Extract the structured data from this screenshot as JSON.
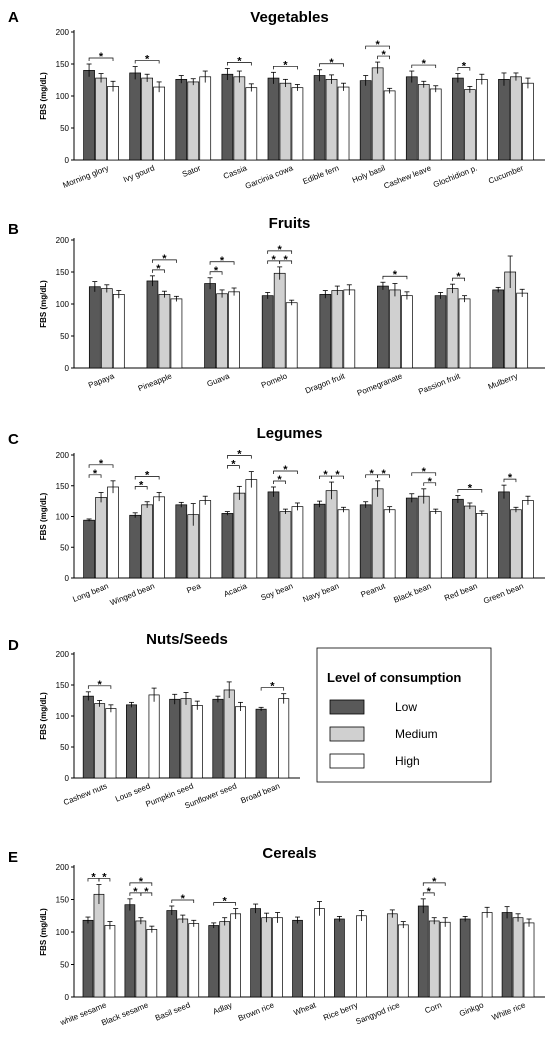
{
  "legend": {
    "title": "Level of consumption",
    "items": [
      {
        "label": "Low",
        "color": "#595959"
      },
      {
        "label": "Medium",
        "color": "#d0d0d0"
      },
      {
        "label": "High",
        "color": "#ffffff"
      }
    ]
  },
  "chart_data": [
    {
      "type": "bar",
      "letter": "A",
      "title": "Vegetables",
      "ylabel": "FBS (mg/dL)",
      "ylim": [
        0,
        200
      ],
      "yticks": [
        0,
        50,
        100,
        150,
        200
      ],
      "categories": [
        "Morning glory",
        "Ivy gourd",
        "Sator",
        "Cassia",
        "Garcinia cowa",
        "Edible fern",
        "Holy basil",
        "Cashew leave",
        "Glochidion p.",
        "Cucumber"
      ],
      "series": [
        {
          "name": "Low",
          "values": [
            140,
            136,
            126,
            134,
            128,
            132,
            124,
            130,
            128,
            126
          ],
          "errors": [
            10,
            10,
            6,
            9,
            9,
            9,
            8,
            9,
            7,
            10
          ]
        },
        {
          "name": "Medium",
          "values": [
            128,
            128,
            122,
            130,
            120,
            126,
            144,
            118,
            110,
            130
          ],
          "errors": [
            7,
            6,
            5,
            9,
            6,
            7,
            9,
            5,
            5,
            6
          ]
        },
        {
          "name": "High",
          "values": [
            115,
            114,
            130,
            113,
            113,
            114,
            108,
            111,
            126,
            120
          ],
          "errors": [
            8,
            8,
            9,
            6,
            5,
            6,
            4,
            5,
            8,
            8
          ]
        }
      ],
      "significance": [
        {
          "cat": 0,
          "from": 0,
          "to": 2,
          "level": 0
        },
        {
          "cat": 1,
          "from": 0,
          "to": 2,
          "level": 0
        },
        {
          "cat": 3,
          "from": 0,
          "to": 2,
          "level": 0
        },
        {
          "cat": 4,
          "from": 0,
          "to": 2,
          "level": 0
        },
        {
          "cat": 5,
          "from": 0,
          "to": 2,
          "level": 0
        },
        {
          "cat": 6,
          "from": 0,
          "to": 2,
          "level": 1
        },
        {
          "cat": 6,
          "from": 1,
          "to": 2,
          "level": 0
        },
        {
          "cat": 7,
          "from": 0,
          "to": 2,
          "level": 0
        },
        {
          "cat": 8,
          "from": 0,
          "to": 1,
          "level": 0
        }
      ]
    },
    {
      "type": "bar",
      "letter": "B",
      "title": "Fruits",
      "ylabel": "FBS (mg/dL)",
      "ylim": [
        0,
        200
      ],
      "yticks": [
        0,
        50,
        100,
        150,
        200
      ],
      "categories": [
        "Papaya",
        "Pineapple",
        "Guava",
        "Pomelo",
        "Dragon fruit",
        "Pomegranate",
        "Passion fruit",
        "Mulberry"
      ],
      "series": [
        {
          "name": "Low",
          "values": [
            127,
            136,
            132,
            113,
            115,
            128,
            113,
            122
          ],
          "errors": [
            8,
            8,
            9,
            5,
            6,
            6,
            5,
            4
          ]
        },
        {
          "name": "Medium",
          "values": [
            124,
            115,
            116,
            148,
            121,
            122,
            124,
            150
          ],
          "errors": [
            6,
            5,
            6,
            10,
            7,
            10,
            7,
            25
          ]
        },
        {
          "name": "High",
          "values": [
            115,
            108,
            119,
            102,
            122,
            113,
            108,
            117
          ],
          "errors": [
            6,
            4,
            6,
            4,
            8,
            6,
            5,
            6
          ]
        }
      ],
      "significance": [
        {
          "cat": 1,
          "from": 0,
          "to": 2,
          "level": 1
        },
        {
          "cat": 1,
          "from": 0,
          "to": 1,
          "level": 0
        },
        {
          "cat": 2,
          "from": 0,
          "to": 2,
          "level": 1
        },
        {
          "cat": 2,
          "from": 0,
          "to": 1,
          "level": 0
        },
        {
          "cat": 3,
          "from": 0,
          "to": 2,
          "level": 1
        },
        {
          "cat": 3,
          "from": 0,
          "to": 1,
          "level": 0
        },
        {
          "cat": 3,
          "from": 1,
          "to": 2,
          "level": 0
        },
        {
          "cat": 5,
          "from": 0,
          "to": 2,
          "level": 0
        },
        {
          "cat": 6,
          "from": 1,
          "to": 2,
          "level": 0
        }
      ]
    },
    {
      "type": "bar",
      "letter": "C",
      "title": "Legumes",
      "ylabel": "FBS (mg/dL)",
      "ylim": [
        0,
        200
      ],
      "yticks": [
        0,
        50,
        100,
        150,
        200
      ],
      "categories": [
        "Long bean",
        "Winged bean",
        "Pea",
        "Acacia",
        "Soy bean",
        "Navy bean",
        "Peanut",
        "Black bean",
        "Red bean",
        "Green bean"
      ],
      "series": [
        {
          "name": "Low",
          "values": [
            94,
            102,
            119,
            105,
            140,
            120,
            119,
            130,
            128,
            140
          ],
          "errors": [
            2,
            4,
            4,
            3,
            8,
            5,
            5,
            7,
            6,
            11
          ]
        },
        {
          "name": "Medium",
          "values": [
            131,
            119,
            103,
            138,
            108,
            142,
            145,
            133,
            117,
            111
          ],
          "errors": [
            8,
            5,
            18,
            11,
            4,
            14,
            13,
            12,
            5,
            4
          ]
        },
        {
          "name": "High",
          "values": [
            148,
            132,
            126,
            160,
            116,
            111,
            111,
            108,
            105,
            126
          ],
          "errors": [
            10,
            7,
            7,
            13,
            6,
            4,
            5,
            4,
            4,
            7
          ]
        }
      ],
      "significance": [
        {
          "cat": 0,
          "from": 0,
          "to": 2,
          "level": 1
        },
        {
          "cat": 0,
          "from": 0,
          "to": 1,
          "level": 0
        },
        {
          "cat": 1,
          "from": 0,
          "to": 2,
          "level": 1
        },
        {
          "cat": 1,
          "from": 0,
          "to": 1,
          "level": 0
        },
        {
          "cat": 3,
          "from": 0,
          "to": 2,
          "level": 1
        },
        {
          "cat": 3,
          "from": 0,
          "to": 1,
          "level": 0
        },
        {
          "cat": 4,
          "from": 0,
          "to": 2,
          "level": 1
        },
        {
          "cat": 4,
          "from": 0,
          "to": 1,
          "level": 0
        },
        {
          "cat": 5,
          "from": 0,
          "to": 1,
          "level": 0
        },
        {
          "cat": 5,
          "from": 1,
          "to": 2,
          "level": 0
        },
        {
          "cat": 6,
          "from": 0,
          "to": 1,
          "level": 0
        },
        {
          "cat": 6,
          "from": 1,
          "to": 2,
          "level": 0
        },
        {
          "cat": 7,
          "from": 0,
          "to": 2,
          "level": 1
        },
        {
          "cat": 7,
          "from": 1,
          "to": 2,
          "level": 0
        },
        {
          "cat": 8,
          "from": 0,
          "to": 2,
          "level": 0
        },
        {
          "cat": 9,
          "from": 0,
          "to": 1,
          "level": 0
        }
      ]
    },
    {
      "type": "bar",
      "letter": "D",
      "title": "Nuts/Seeds",
      "ylabel": "FBS (mg/dL)",
      "ylim": [
        0,
        200
      ],
      "yticks": [
        0,
        50,
        100,
        150,
        200
      ],
      "categories": [
        "Cashew nuts",
        "Lous seed",
        "Pumpkin seed",
        "Sunflower seed",
        "Broad bean"
      ],
      "series": [
        {
          "name": "Low",
          "values": [
            132,
            118,
            127,
            127,
            111
          ],
          "errors": [
            7,
            4,
            8,
            5,
            3
          ]
        },
        {
          "name": "Medium",
          "values": [
            120,
            null,
            128,
            142,
            null
          ],
          "errors": [
            5,
            0,
            10,
            13,
            0
          ]
        },
        {
          "name": "High",
          "values": [
            112,
            134,
            117,
            115,
            128
          ],
          "errors": [
            6,
            11,
            7,
            7,
            8
          ]
        }
      ],
      "significance": [
        {
          "cat": 0,
          "from": 0,
          "to": 2,
          "level": 0
        },
        {
          "cat": 4,
          "from": 0,
          "to": 2,
          "level": 0
        }
      ]
    },
    {
      "type": "bar",
      "letter": "E",
      "title": "Cereals",
      "ylabel": "FBS (mg/dL)",
      "ylim": [
        0,
        200
      ],
      "yticks": [
        0,
        50,
        100,
        150,
        200
      ],
      "categories": [
        "white sesame",
        "Black sesame",
        "Basil seed",
        "Adlay",
        "Brown rice",
        "Wheat",
        "Rice berry",
        "Sangyod rice",
        "Corn",
        "Ginkgo",
        "White rice"
      ],
      "series": [
        {
          "name": "Low",
          "values": [
            118,
            142,
            133,
            110,
            136,
            118,
            120,
            null,
            140,
            120,
            130
          ],
          "errors": [
            5,
            9,
            7,
            4,
            7,
            5,
            4,
            0,
            11,
            4,
            9
          ]
        },
        {
          "name": "Medium",
          "values": [
            158,
            117,
            120,
            116,
            122,
            null,
            null,
            128,
            117,
            null,
            122
          ],
          "errors": [
            15,
            5,
            6,
            6,
            7,
            0,
            0,
            6,
            5,
            0,
            6
          ]
        },
        {
          "name": "High",
          "values": [
            110,
            104,
            113,
            128,
            122,
            136,
            125,
            111,
            115,
            130,
            114
          ],
          "errors": [
            6,
            5,
            5,
            8,
            8,
            11,
            8,
            5,
            7,
            8,
            6
          ]
        }
      ],
      "significance": [
        {
          "cat": 0,
          "from": 0,
          "to": 1,
          "level": 0
        },
        {
          "cat": 0,
          "from": 1,
          "to": 2,
          "level": 0
        },
        {
          "cat": 1,
          "from": 0,
          "to": 2,
          "level": 1
        },
        {
          "cat": 1,
          "from": 0,
          "to": 1,
          "level": 0
        },
        {
          "cat": 1,
          "from": 1,
          "to": 2,
          "level": 0
        },
        {
          "cat": 2,
          "from": 0,
          "to": 2,
          "level": 0
        },
        {
          "cat": 3,
          "from": 0,
          "to": 2,
          "level": 0
        },
        {
          "cat": 8,
          "from": 0,
          "to": 2,
          "level": 1
        },
        {
          "cat": 8,
          "from": 0,
          "to": 1,
          "level": 0
        }
      ]
    }
  ]
}
